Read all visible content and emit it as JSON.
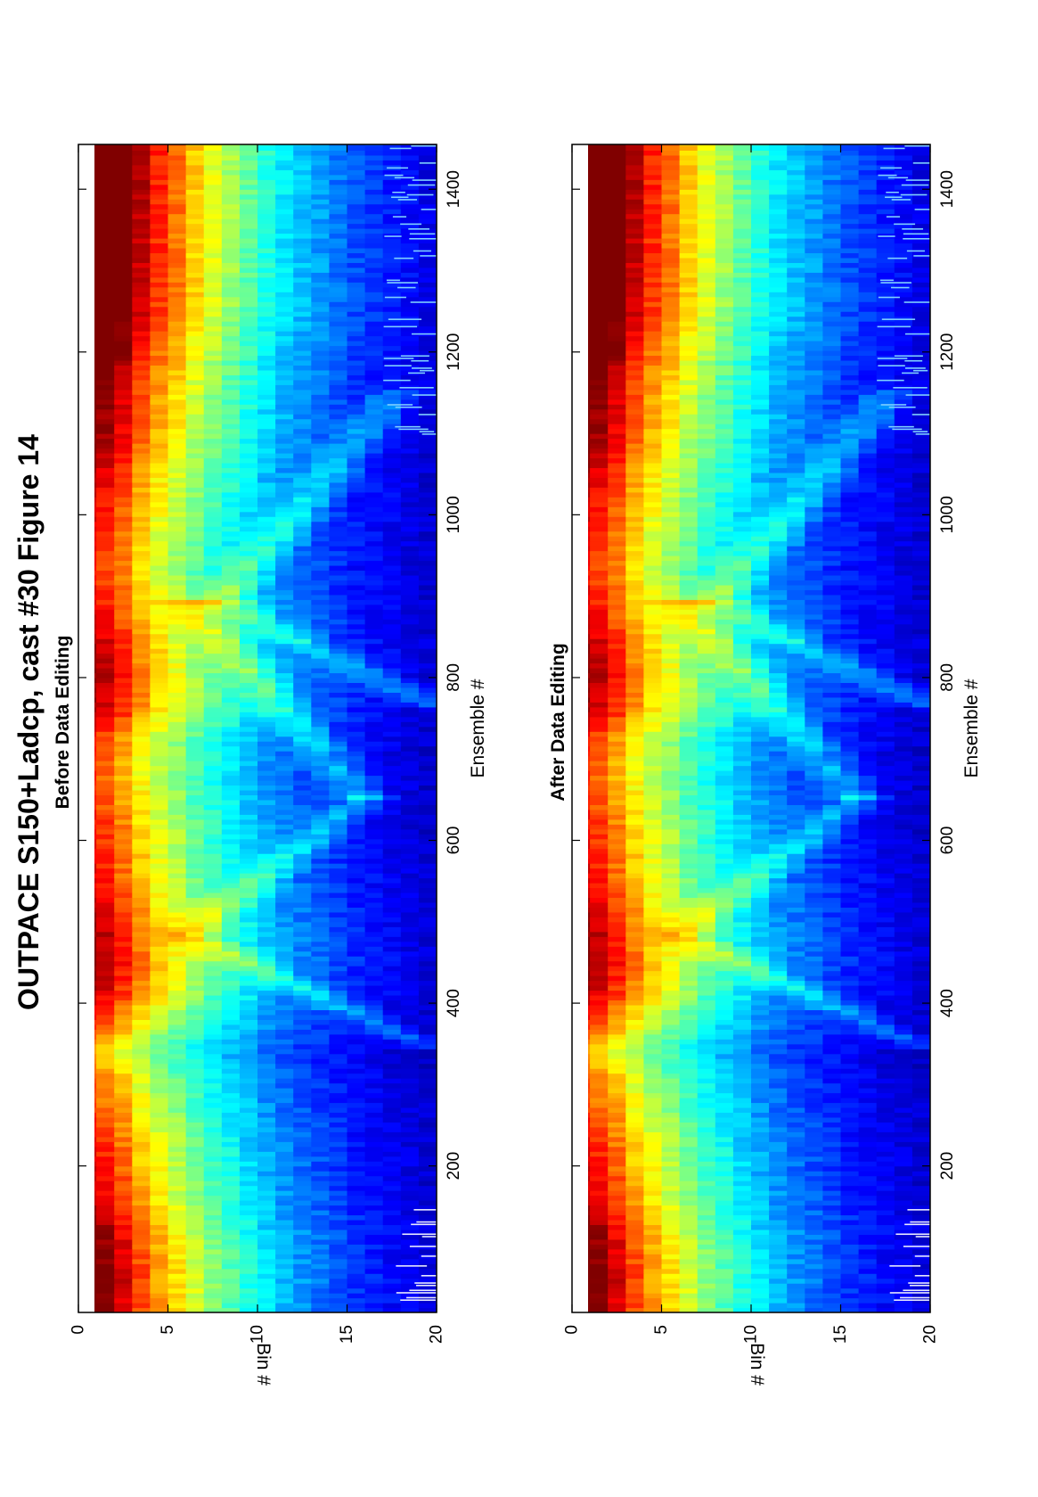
{
  "figure": {
    "title": "OUTPACE S150+Ladcp, cast #30  Figure 14"
  },
  "colormap": [
    "#00008f",
    "#0000ff",
    "#0080ff",
    "#00ffff",
    "#80ff80",
    "#ffff00",
    "#ff8000",
    "#ff0000",
    "#800000"
  ],
  "chart_data": [
    {
      "type": "heatmap",
      "subtitle": "Before Data Editing",
      "xlabel": "Ensemble #",
      "ylabel": "Bin #",
      "xlim": [
        20,
        1455
      ],
      "ylim": [
        0,
        20
      ],
      "xticks": [
        200,
        400,
        600,
        800,
        1000,
        1200,
        1400
      ],
      "yticks": [
        0,
        5,
        10,
        15,
        20
      ],
      "rows": 20,
      "row_scale": [
        0.98,
        0.92,
        0.84,
        0.74,
        0.66,
        0.6,
        0.53,
        0.47,
        0.42,
        0.37,
        0.32,
        0.28,
        0.25,
        0.22,
        0.19,
        0.16,
        0.14,
        0.12,
        0.1,
        0.08
      ],
      "column_strength": {
        "x": [
          20,
          60,
          110,
          160,
          210,
          260,
          310,
          340,
          370,
          410,
          450,
          480,
          510,
          550,
          600,
          650,
          680,
          720,
          760,
          800,
          850,
          890,
          930,
          970,
          1010,
          1050,
          1090,
          1130,
          1170,
          1210,
          1250,
          1300,
          1350,
          1400,
          1455
        ],
        "value": [
          1.08,
          1.1,
          1.06,
          0.96,
          0.92,
          0.86,
          0.78,
          0.72,
          0.84,
          0.98,
          1.04,
          1.02,
          0.98,
          0.92,
          0.9,
          0.86,
          0.84,
          0.86,
          1.0,
          1.02,
          0.98,
          0.92,
          0.88,
          0.9,
          0.94,
          0.98,
          1.04,
          1.08,
          1.12,
          1.18,
          1.24,
          1.26,
          1.27,
          1.28,
          1.28
        ]
      },
      "ridges": [
        {
          "from": [
            340,
            20
          ],
          "to": [
            480,
            6
          ]
        },
        {
          "from": [
            480,
            6
          ],
          "to": [
            650,
            16
          ]
        },
        {
          "from": [
            650,
            16
          ],
          "to": [
            890,
            6
          ]
        },
        {
          "from": [
            760,
            20
          ],
          "to": [
            890,
            8
          ]
        },
        {
          "from": [
            890,
            8
          ],
          "to": [
            1150,
            18
          ]
        }
      ],
      "bad_data": [
        {
          "x_from": 30,
          "x_to": 150,
          "bin_from": 17.5,
          "bin_to": 20
        },
        {
          "x_from": 1100,
          "x_to": 1455,
          "bin_from": 17,
          "bin_to": 20
        }
      ]
    },
    {
      "type": "heatmap",
      "subtitle": "After Data Editing",
      "xlabel": "Ensemble #",
      "ylabel": "Bin #",
      "xlim": [
        20,
        1455
      ],
      "ylim": [
        0,
        20
      ],
      "xticks": [
        200,
        400,
        600,
        800,
        1000,
        1200,
        1400
      ],
      "yticks": [
        0,
        5,
        10,
        15,
        20
      ],
      "rows": 20,
      "row_scale": [
        0.98,
        0.92,
        0.84,
        0.74,
        0.66,
        0.6,
        0.53,
        0.47,
        0.42,
        0.37,
        0.32,
        0.28,
        0.25,
        0.22,
        0.19,
        0.16,
        0.14,
        0.12,
        0.1,
        0.08
      ],
      "column_strength": {
        "x": [
          20,
          60,
          110,
          160,
          210,
          260,
          310,
          340,
          370,
          410,
          450,
          480,
          510,
          550,
          600,
          650,
          680,
          720,
          760,
          800,
          850,
          890,
          930,
          970,
          1010,
          1050,
          1090,
          1130,
          1170,
          1210,
          1250,
          1300,
          1350,
          1400,
          1455
        ],
        "value": [
          1.08,
          1.1,
          1.06,
          0.96,
          0.92,
          0.86,
          0.78,
          0.72,
          0.84,
          0.98,
          1.04,
          1.02,
          0.98,
          0.92,
          0.9,
          0.86,
          0.84,
          0.86,
          1.0,
          1.02,
          0.98,
          0.92,
          0.88,
          0.9,
          0.94,
          0.98,
          1.04,
          1.08,
          1.12,
          1.18,
          1.24,
          1.26,
          1.27,
          1.28,
          1.28
        ]
      },
      "ridges": [
        {
          "from": [
            340,
            20
          ],
          "to": [
            480,
            6
          ]
        },
        {
          "from": [
            480,
            6
          ],
          "to": [
            650,
            16
          ]
        },
        {
          "from": [
            650,
            16
          ],
          "to": [
            890,
            6
          ]
        },
        {
          "from": [
            760,
            20
          ],
          "to": [
            890,
            8
          ]
        },
        {
          "from": [
            890,
            8
          ],
          "to": [
            1150,
            18
          ]
        }
      ],
      "bad_data": [
        {
          "x_from": 30,
          "x_to": 150,
          "bin_from": 17.5,
          "bin_to": 20
        },
        {
          "x_from": 1100,
          "x_to": 1455,
          "bin_from": 17,
          "bin_to": 20
        }
      ]
    }
  ]
}
